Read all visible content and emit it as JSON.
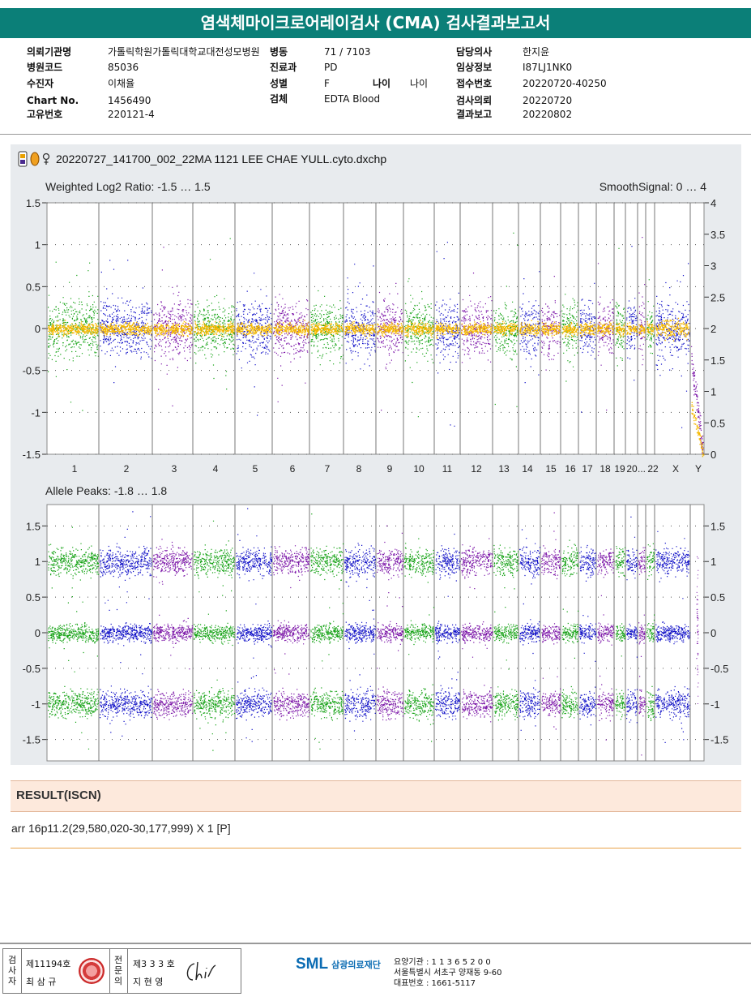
{
  "report": {
    "title": "염색체마이크로어레이검사 (CMA) 검사결과보고서"
  },
  "info": {
    "col1": [
      {
        "label": "의뢰기관명",
        "value": "가톨릭학원가톨릭대학교대전성모병원"
      },
      {
        "label": "병원코드",
        "value": "85036"
      },
      {
        "label": "수진자",
        "value": "이채율"
      },
      {
        "label": "Chart No.",
        "value": "1456490"
      },
      {
        "label": "고유번호",
        "value": "220121-4"
      }
    ],
    "col2": [
      {
        "label": "병동",
        "value": "71 / 7103"
      },
      {
        "label": "진료과",
        "value": "PD"
      },
      {
        "label": "성별",
        "value": "F"
      },
      {
        "label": "검체",
        "value": "EDTA Blood"
      }
    ],
    "age": {
      "label": "나이",
      "value": "나이"
    },
    "col3": [
      {
        "label": "담당의사",
        "value": "한지윤"
      },
      {
        "label": "임상정보",
        "value": "I87LJ1NK0"
      },
      {
        "label": "접수번호",
        "value": "20220720-40250"
      },
      {
        "label": "검사의뢰",
        "value": "20220720"
      },
      {
        "label": "결과보고",
        "value": "20220802"
      }
    ]
  },
  "file": {
    "name": "20220727_141700_002_22MA 1121 LEE CHAE YULL.cyto.dxchp",
    "icons": [
      "chip-icon",
      "oval-marker-icon",
      "female-symbol-icon"
    ]
  },
  "chart_data": [
    {
      "type": "scatter",
      "title": "Weighted Log2 Ratio: -1.5 … 1.5",
      "right_title": "SmoothSignal: 0 … 4",
      "ylim": [
        -1.5,
        1.5
      ],
      "y_ticks": [
        "1.5",
        "1",
        "0.5",
        "0",
        "-0.5",
        "-1",
        "-1.5"
      ],
      "y2lim": [
        0,
        4
      ],
      "y2_ticks": [
        "4",
        "3.5",
        "3",
        "2.5",
        "2",
        "1.5",
        "1",
        "0.5",
        "0"
      ],
      "x_labels": [
        "1",
        "2",
        "3",
        "4",
        "5",
        "6",
        "7",
        "8",
        "9",
        "10",
        "11",
        "12",
        "13",
        "14",
        "15",
        "16",
        "17",
        "18",
        "19",
        "20",
        "...",
        "22",
        "X",
        "Y"
      ],
      "series_colors": [
        "#13a213",
        "#1010c8",
        "#7b14a8"
      ],
      "smooth_color": "#f5b800",
      "grid": "dotted"
    },
    {
      "type": "scatter",
      "title": "Allele Peaks: -1.8 … 1.8",
      "ylim": [
        -1.8,
        1.8
      ],
      "y_ticks": [
        "1.5",
        "1",
        "0.5",
        "0",
        "-0.5",
        "-1",
        "-1.5"
      ],
      "y2_ticks": [
        "1.5",
        "1",
        "0.5",
        "0",
        "-0.5",
        "-1",
        "-1.5"
      ],
      "bands": [
        1,
        0,
        -1
      ],
      "series_colors": [
        "#13a213",
        "#1010c8",
        "#7b14a8"
      ],
      "grid": "dotted"
    }
  ],
  "result": {
    "heading": "RESULT(ISCN)",
    "text": "arr 16p11.2(29,580,020-30,177,999) X 1 [P]"
  },
  "footer": {
    "tester_label": "검사자",
    "tester_license": "제11194호",
    "tester_name": "최 삼 규",
    "doctor_label": "전문의",
    "doctor_license": "제3 3 3 호",
    "doctor_name": "지 현 영",
    "logo": "SML",
    "org": "삼광의료재단",
    "addr1": "요양기관 : 1 1 3 6 5 2 0 0",
    "addr2": "서울특별시 서초구 양재동 9-60",
    "addr3": "대표번호 : 1661-5117"
  }
}
